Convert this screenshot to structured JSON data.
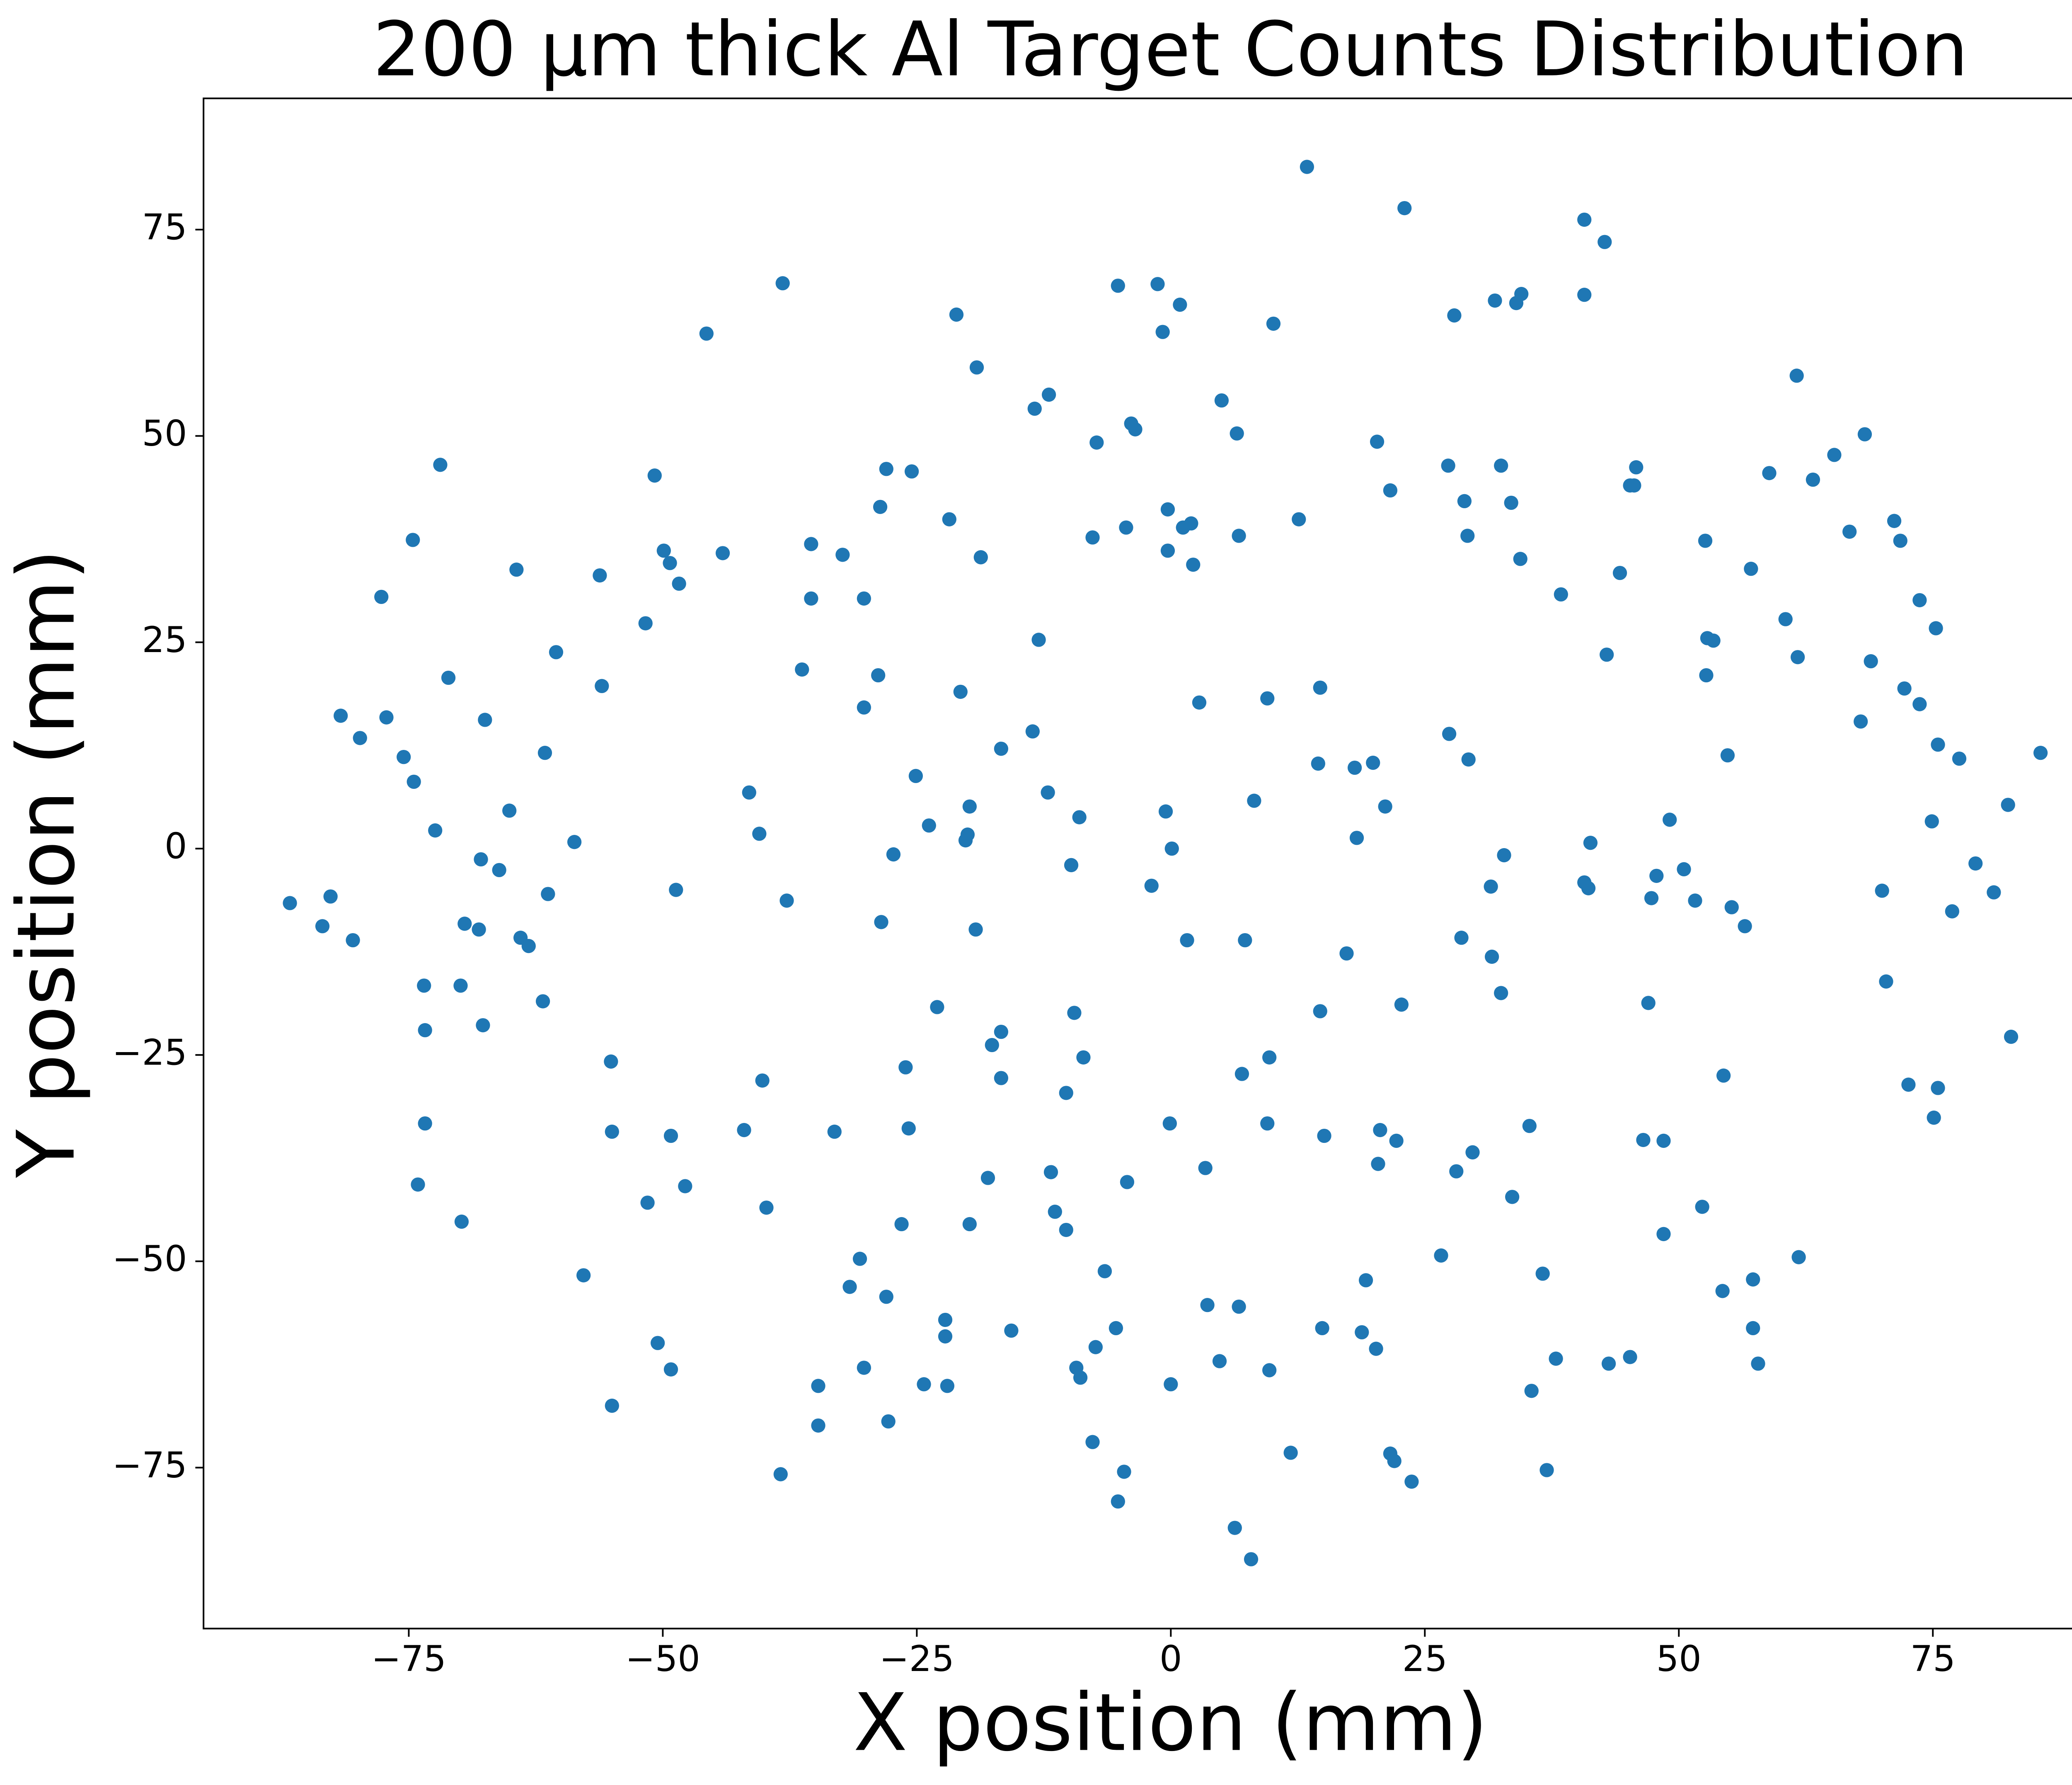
{
  "chart_data": {
    "type": "scatter",
    "title": "200 μm thick Al Target Counts Distribution",
    "xlabel": "X position (mm)",
    "ylabel": "Y position (mm)",
    "color": "#1f77b4",
    "xlim": [
      -95.2,
      94.2
    ],
    "ylim": [
      -94.5,
      90.9
    ],
    "xticks": [
      {
        "value": -75,
        "label": "−75"
      },
      {
        "value": -50,
        "label": "−50"
      },
      {
        "value": -25,
        "label": "−25"
      },
      0,
      25,
      50,
      75
    ],
    "yticks": [
      {
        "value": -75,
        "label": "−75"
      },
      {
        "value": -50,
        "label": "−50"
      },
      {
        "value": -25,
        "label": "−25"
      },
      0,
      25,
      50,
      75
    ],
    "x": [
      -86.7,
      -83.5,
      -82.7,
      -80.5,
      -81.7,
      -79.8,
      -77.7,
      -77.2,
      -75.5,
      -74.6,
      -74.5,
      -72.4,
      -71.9,
      -73.5,
      -73.4,
      -73.4,
      -74.1,
      -69.8,
      -71.1,
      -69.9,
      -69.5,
      -68.1,
      -67.9,
      -67.5,
      -67.7,
      -66.1,
      -65.1,
      -64.4,
      -64.0,
      -63.2,
      -61.6,
      -61.3,
      -61.8,
      -60.5,
      -58.7,
      -57.8,
      -56.2,
      -56.0,
      -55.1,
      -55.0,
      -55.0,
      -51.7,
      -51.5,
      -50.8,
      -50.5,
      -49.9,
      -49.3,
      -49.2,
      -49.2,
      -48.7,
      -48.4,
      -47.8,
      -45.7,
      -44.1,
      -42.0,
      -41.5,
      -40.5,
      -40.2,
      -39.8,
      -38.4,
      -38.2,
      -37.8,
      -36.3,
      -35.4,
      -35.4,
      -34.7,
      -34.7,
      -33.1,
      -32.3,
      -31.6,
      -30.6,
      -30.2,
      -30.2,
      -30.2,
      -28.8,
      -28.6,
      -28.5,
      -28.0,
      -28.0,
      -27.8,
      -27.3,
      -26.5,
      -26.1,
      -25.8,
      -25.5,
      -25.1,
      -24.3,
      -23.8,
      -23.0,
      -22.2,
      -22.2,
      -22.0,
      -21.8,
      -21.1,
      -20.7,
      -20.2,
      -20.0,
      -19.8,
      -19.8,
      -19.2,
      -19.1,
      -18.7,
      -18.0,
      -17.6,
      -16.7,
      -16.7,
      -16.7,
      -15.7,
      -13.6,
      -13.4,
      -13.0,
      -12.1,
      -12.0,
      -11.8,
      -11.4,
      -10.3,
      -10.3,
      -9.8,
      -9.5,
      -9.3,
      -9.0,
      -8.9,
      -8.6,
      -7.7,
      -7.7,
      -7.4,
      -7.3,
      -6.5,
      -5.4,
      -5.2,
      -5.2,
      -4.6,
      -4.4,
      -4.3,
      -3.9,
      -3.5,
      -1.9,
      -1.3,
      -0.8,
      -0.5,
      -0.3,
      -0.3,
      -0.1,
      0,
      0.1,
      0.9,
      1.2,
      1.6,
      2.0,
      2.2,
      2.8,
      3.4,
      3.6,
      4.8,
      5.0,
      6.3,
      6.5,
      6.7,
      6.7,
      7.0,
      7.3,
      7.9,
      8.2,
      9.5,
      9.5,
      9.7,
      9.7,
      10.1,
      11.8,
      12.6,
      13.4,
      14.5,
      14.7,
      14.7,
      14.9,
      15.1,
      17.3,
      18.1,
      18.3,
      18.8,
      19.2,
      19.9,
      20.2,
      20.3,
      20.4,
      20.6,
      21.1,
      21.6,
      21.6,
      22.0,
      22.2,
      22.7,
      23.0,
      23.7,
      26.6,
      27.3,
      27.4,
      27.9,
      28.1,
      28.6,
      28.9,
      29.2,
      29.3,
      29.7,
      31.5,
      31.6,
      31.9,
      32.5,
      32.5,
      32.8,
      33.5,
      33.6,
      34.0,
      34.4,
      34.5,
      35.3,
      35.5,
      36.6,
      37.0,
      37.9,
      38.4,
      40.7,
      40.7,
      40.7,
      41.1,
      41.3,
      42.7,
      42.9,
      43.1,
      44.2,
      45.2,
      45.2,
      45.6,
      45.8,
      46.5,
      47.0,
      47.3,
      47.8,
      48.5,
      48.5,
      49.1,
      50.5,
      51.6,
      52.3,
      52.6,
      52.7,
      52.8,
      53.4,
      54.3,
      54.4,
      54.8,
      55.2,
      56.5,
      57.1,
      57.3,
      57.3,
      57.8,
      58.9,
      60.5,
      61.6,
      61.7,
      61.8,
      63.2,
      65.3,
      66.8,
      67.9,
      68.3,
      68.9,
      70.0,
      70.4,
      71.2,
      71.8,
      72.2,
      72.6,
      73.7,
      73.7,
      74.9,
      75.1,
      75.3,
      75.5,
      75.5,
      76.9,
      77.6,
      79.2,
      81.0,
      82.4,
      82.7,
      85.6
    ],
    "values": [
      -6.6,
      -9.4,
      -5.8,
      -11.1,
      16.1,
      13.4,
      30.5,
      15.9,
      11.1,
      37.4,
      8.1,
      2.2,
      46.5,
      -16.6,
      -22.0,
      -33.3,
      -40.7,
      -45.2,
      20.7,
      -16.6,
      -9.1,
      -9.8,
      -1.3,
      15.6,
      -21.4,
      -2.6,
      4.6,
      33.8,
      -10.8,
      -11.8,
      11.6,
      -5.5,
      -18.5,
      23.8,
      0.8,
      -51.7,
      33.1,
      19.7,
      -25.8,
      -34.3,
      -67.5,
      27.3,
      -42.9,
      45.2,
      -59.9,
      36.1,
      34.6,
      -34.8,
      -63.1,
      -5.0,
      32.1,
      -40.9,
      62.4,
      35.8,
      -34.1,
      6.8,
      1.8,
      -28.1,
      -43.5,
      -75.8,
      68.5,
      -6.3,
      21.7,
      36.9,
      30.3,
      -65.1,
      -69.9,
      -34.3,
      35.6,
      -53.1,
      -49.7,
      30.3,
      17.1,
      -62.9,
      21.0,
      41.4,
      -8.9,
      46.0,
      -54.3,
      -69.4,
      -0.7,
      -45.5,
      -26.5,
      -33.9,
      45.7,
      8.8,
      -64.9,
      2.8,
      -19.2,
      -59.1,
      -57.1,
      -65.1,
      39.9,
      64.7,
      19.0,
      1.0,
      1.7,
      5.1,
      -45.5,
      -9.8,
      58.3,
      35.3,
      -39.9,
      -23.8,
      12.1,
      -22.2,
      -27.8,
      -58.4,
      14.2,
      53.3,
      25.3,
      6.8,
      55.0,
      -39.2,
      -44.0,
      -46.2,
      -29.6,
      -2.0,
      -19.9,
      -62.9,
      3.8,
      -64.1,
      -25.3,
      37.7,
      -71.9,
      -60.4,
      49.2,
      -51.2,
      -58.1,
      68.2,
      -79.1,
      -75.5,
      38.9,
      -40.4,
      51.5,
      50.8,
      -4.5,
      68.4,
      62.6,
      4.5,
      41.1,
      36.1,
      -33.3,
      -64.9,
      0.0,
      65.9,
      38.9,
      -11.1,
      39.4,
      34.4,
      17.7,
      -38.7,
      -55.3,
      -62.1,
      54.3,
      -82.3,
      50.3,
      37.9,
      -55.5,
      -27.3,
      -11.1,
      -86.1,
      5.8,
      -33.3,
      18.2,
      -63.2,
      -25.3,
      63.6,
      -73.2,
      39.9,
      82.6,
      10.3,
      19.5,
      -19.7,
      -58.1,
      -34.8,
      -12.7,
      9.8,
      1.3,
      -58.6,
      -52.3,
      10.4,
      -60.6,
      49.3,
      -38.2,
      -34.1,
      5.1,
      43.4,
      -73.3,
      -74.2,
      -35.4,
      -18.9,
      77.6,
      -76.7,
      -49.3,
      46.4,
      13.9,
      64.6,
      -39.1,
      -10.8,
      42.1,
      37.9,
      10.8,
      -36.8,
      -4.6,
      -13.1,
      66.4,
      46.4,
      -17.5,
      -0.8,
      41.9,
      -42.2,
      66.1,
      35.1,
      67.2,
      -33.6,
      -65.7,
      -51.5,
      -75.3,
      -61.8,
      30.8,
      76.2,
      67.1,
      -4.1,
      -4.8,
      0.7,
      73.5,
      23.5,
      -62.4,
      33.4,
      -61.6,
      44.0,
      44.0,
      46.2,
      -35.3,
      -18.7,
      -6.0,
      -3.3,
      -46.7,
      -35.4,
      3.5,
      -2.5,
      -6.3,
      -43.4,
      37.3,
      21.0,
      25.5,
      25.2,
      -53.6,
      -27.5,
      11.3,
      -7.1,
      -9.4,
      33.9,
      -52.2,
      -58.1,
      -62.4,
      45.5,
      27.8,
      57.3,
      23.2,
      -49.5,
      44.7,
      47.7,
      38.4,
      15.4,
      50.2,
      22.7,
      -5.1,
      -16.1,
      39.7,
      37.3,
      19.4,
      -28.6,
      17.5,
      30.1,
      3.3,
      -32.6,
      26.7,
      12.6,
      -29.0,
      -7.6,
      10.9,
      -1.8,
      -5.3,
      5.3,
      -22.8,
      11.6
    ]
  }
}
